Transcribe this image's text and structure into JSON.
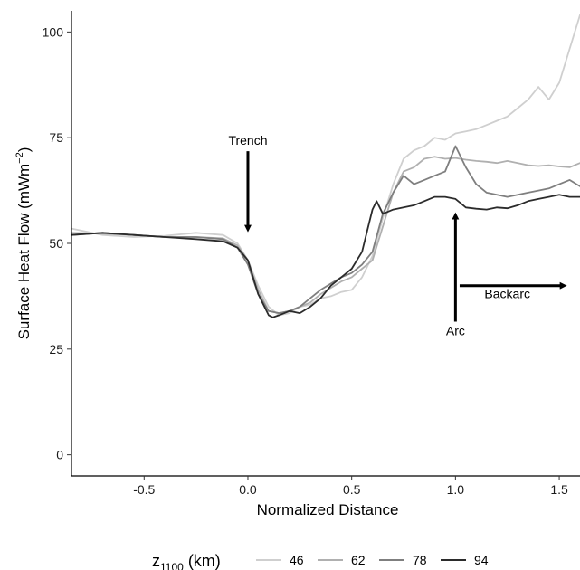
{
  "chart_data": {
    "type": "line",
    "xlabel": "Normalized Distance",
    "ylabel_main": "Surface Heat Flow (mWm",
    "ylabel_sup": "−2",
    "ylabel_close": ")",
    "xlim": [
      -0.85,
      1.6
    ],
    "ylim": [
      -5,
      105
    ],
    "x_ticks": [
      -0.5,
      0.0,
      0.5,
      1.0,
      1.5
    ],
    "x_tick_labels": [
      "-0.5",
      "0.0",
      "0.5",
      "1.0",
      "1.5"
    ],
    "y_ticks": [
      0,
      25,
      50,
      75,
      100
    ],
    "y_tick_labels": [
      "0",
      "25",
      "50",
      "75",
      "100"
    ],
    "grid": false,
    "legend_position": "bottom",
    "legend_title_main": "z",
    "legend_title_sub": "1100",
    "legend_title_unit": " (km)",
    "series": [
      {
        "name": "46",
        "color": "#cfcfcf",
        "x": [
          -0.85,
          -0.7,
          -0.55,
          -0.4,
          -0.25,
          -0.12,
          -0.05,
          0.0,
          0.05,
          0.1,
          0.15,
          0.2,
          0.25,
          0.3,
          0.35,
          0.4,
          0.45,
          0.5,
          0.55,
          0.6,
          0.65,
          0.7,
          0.75,
          0.8,
          0.85,
          0.9,
          0.95,
          1.0,
          1.05,
          1.1,
          1.15,
          1.2,
          1.25,
          1.3,
          1.35,
          1.4,
          1.45,
          1.5,
          1.55,
          1.6
        ],
        "y": [
          53.5,
          52,
          51.5,
          51.8,
          52.5,
          52,
          50,
          46,
          40,
          35,
          33,
          33.5,
          35,
          35.5,
          37,
          37.5,
          38.5,
          39,
          42,
          47,
          56,
          64,
          70,
          72,
          73,
          75,
          74.5,
          76,
          76.5,
          77,
          78,
          79,
          80,
          82,
          84,
          87,
          84,
          88,
          96,
          104
        ]
      },
      {
        "name": "62",
        "color": "#b0b0b0",
        "x": [
          -0.85,
          -0.7,
          -0.55,
          -0.4,
          -0.25,
          -0.12,
          -0.05,
          0.0,
          0.05,
          0.1,
          0.15,
          0.2,
          0.25,
          0.3,
          0.35,
          0.4,
          0.45,
          0.5,
          0.55,
          0.6,
          0.65,
          0.7,
          0.75,
          0.8,
          0.85,
          0.9,
          0.95,
          1.0,
          1.05,
          1.1,
          1.15,
          1.2,
          1.25,
          1.3,
          1.35,
          1.4,
          1.45,
          1.5,
          1.55,
          1.6
        ],
        "y": [
          52.5,
          52.3,
          52,
          51.5,
          51.5,
          51.2,
          49.5,
          46,
          39,
          34,
          33.5,
          34,
          35,
          36,
          38,
          39.5,
          41,
          42,
          44,
          46,
          54,
          62,
          67,
          68,
          70,
          70.5,
          70,
          70.2,
          69.8,
          69.5,
          69.3,
          69,
          69.5,
          69,
          68.5,
          68.3,
          68.5,
          68.2,
          68,
          69
        ]
      },
      {
        "name": "78",
        "color": "#7f7f7f",
        "x": [
          -0.85,
          -0.7,
          -0.55,
          -0.4,
          -0.25,
          -0.12,
          -0.05,
          0.0,
          0.05,
          0.1,
          0.15,
          0.2,
          0.25,
          0.3,
          0.35,
          0.4,
          0.45,
          0.5,
          0.55,
          0.6,
          0.65,
          0.7,
          0.75,
          0.8,
          0.85,
          0.9,
          0.95,
          1.0,
          1.05,
          1.1,
          1.15,
          1.2,
          1.25,
          1.3,
          1.35,
          1.4,
          1.45,
          1.5,
          1.55,
          1.6
        ],
        "y": [
          52,
          52.5,
          52,
          51.5,
          51.5,
          51,
          49,
          45,
          38,
          34,
          33.5,
          34,
          35,
          37,
          39,
          40.5,
          42,
          43,
          45,
          48,
          57,
          62,
          66,
          64,
          65,
          66,
          67,
          73,
          68,
          64,
          62,
          61.5,
          61,
          61.5,
          62,
          62.5,
          63,
          64,
          65,
          63.5
        ]
      },
      {
        "name": "94",
        "color": "#2b2b2b",
        "x": [
          -0.85,
          -0.7,
          -0.55,
          -0.4,
          -0.25,
          -0.12,
          -0.05,
          0.0,
          0.05,
          0.1,
          0.12,
          0.15,
          0.2,
          0.25,
          0.3,
          0.35,
          0.4,
          0.45,
          0.5,
          0.55,
          0.6,
          0.62,
          0.65,
          0.7,
          0.75,
          0.8,
          0.85,
          0.9,
          0.95,
          1.0,
          1.05,
          1.1,
          1.15,
          1.2,
          1.25,
          1.3,
          1.35,
          1.4,
          1.45,
          1.5,
          1.55,
          1.6
        ],
        "y": [
          52,
          52.5,
          52,
          51.5,
          51,
          50.5,
          49,
          46,
          38,
          33,
          32.5,
          33,
          34,
          33.5,
          35,
          37,
          40,
          42,
          44,
          48,
          58,
          60,
          57,
          58,
          58.5,
          59,
          60,
          61,
          61,
          60.5,
          58.5,
          58.2,
          58,
          58.5,
          58.3,
          59,
          60,
          60.5,
          61,
          61.5,
          61,
          61
        ]
      }
    ],
    "annotations": [
      {
        "label": "Trench",
        "x": 0.0,
        "y": 75
      },
      {
        "label": "Arc",
        "x": 1.0,
        "y": 30
      },
      {
        "label": "Backarc",
        "x": 1.25,
        "y": 37
      }
    ]
  }
}
